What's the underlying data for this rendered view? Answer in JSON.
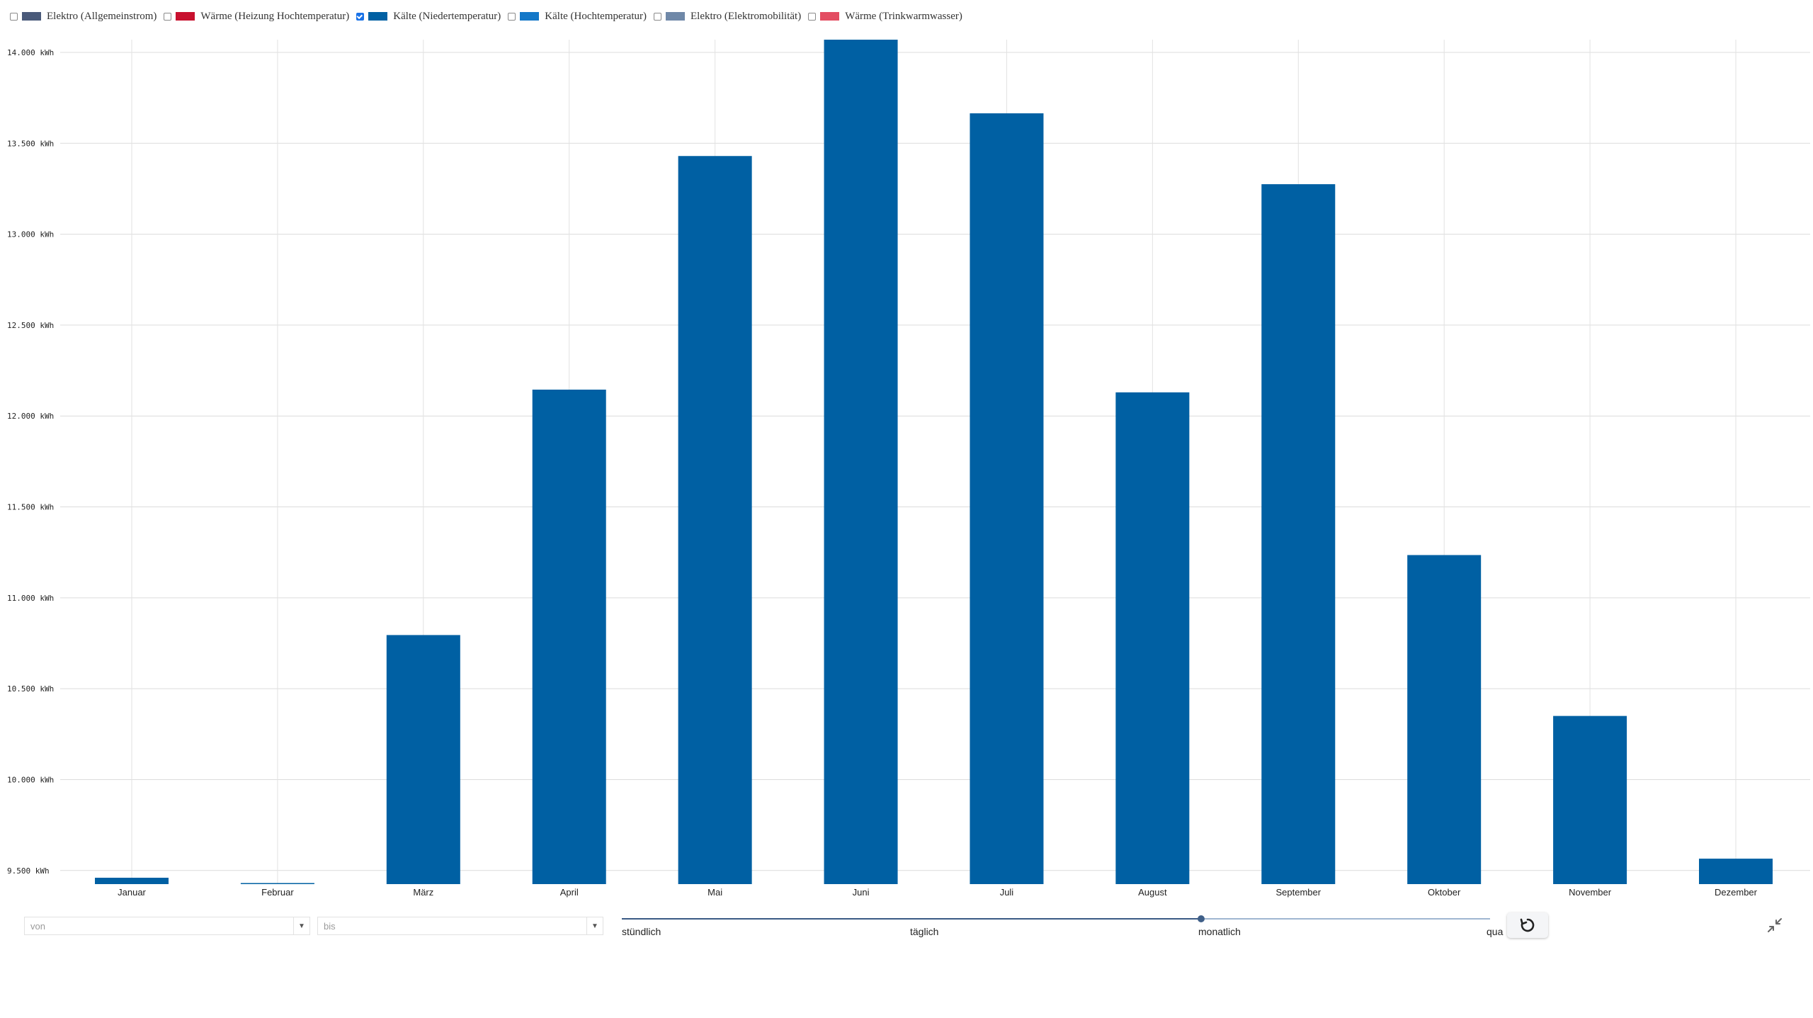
{
  "legend": [
    {
      "label": "Elektro (Allgemeinstrom)",
      "color": "#4a5a7a",
      "checked": false
    },
    {
      "label": "Wärme (Heizung Hochtemperatur)",
      "color": "#c8102e",
      "checked": false
    },
    {
      "label": "Kälte (Niedertemperatur)",
      "color": "#0060a3",
      "checked": true
    },
    {
      "label": "Kälte (Hochtemperatur)",
      "color": "#1478c8",
      "checked": false
    },
    {
      "label": "Elektro (Elektromobilität)",
      "color": "#6f88a8",
      "checked": false
    },
    {
      "label": "Wärme (Trinkwarmwasser)",
      "color": "#e34d62",
      "checked": false
    }
  ],
  "chart_data": {
    "type": "bar",
    "categories": [
      "Januar",
      "Februar",
      "März",
      "April",
      "Mai",
      "Juni",
      "Juli",
      "August",
      "September",
      "Oktober",
      "November",
      "Dezember"
    ],
    "series": [
      {
        "name": "Kälte (Niedertemperatur)",
        "color": "#0060a3",
        "values": [
          9460,
          9430,
          10795,
          12145,
          13430,
          14070,
          13665,
          12130,
          13275,
          11235,
          10350,
          9565
        ]
      }
    ],
    "yticks": [
      "9.500 kWh",
      "10.000 kWh",
      "10.500 kWh",
      "11.000 kWh",
      "11.500 kWh",
      "12.000 kWh",
      "12.500 kWh",
      "13.000 kWh",
      "13.500 kWh",
      "14.000 kWh"
    ],
    "ytick_values": [
      9500,
      10000,
      10500,
      11000,
      11500,
      12000,
      12500,
      13000,
      13500,
      14000
    ],
    "ylim": [
      9425,
      14070
    ],
    "grid": true,
    "legend_placement": "top-left"
  },
  "controls": {
    "from_placeholder": "von",
    "to_placeholder": "bis",
    "resolution_options": [
      "stündlich",
      "täglich",
      "monatlich",
      "quar"
    ],
    "resolution_selected": "monatlich",
    "resolution_level": 0.667,
    "reset_icon": "reset-icon",
    "collapse_icon": "collapse-icon"
  }
}
